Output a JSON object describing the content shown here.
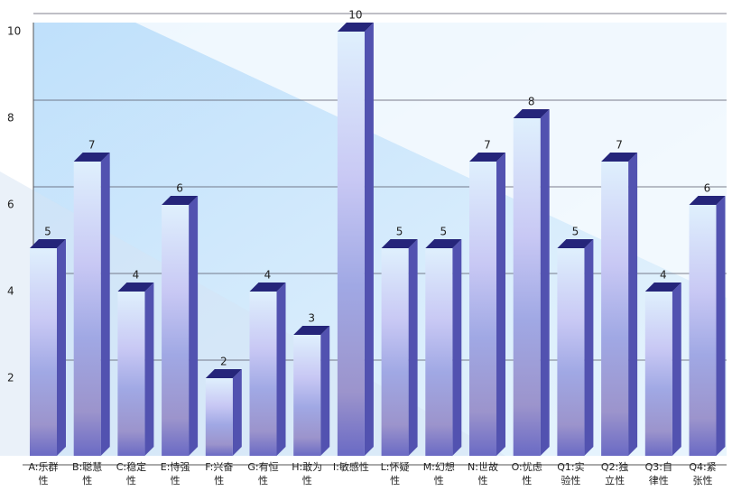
{
  "chart_data": {
    "type": "bar3d",
    "categories": [
      "A:乐群性",
      "B:聪慧性",
      "C:稳定性",
      "E:恃强性",
      "F:兴奋性",
      "G:有恒性",
      "H:敢为性",
      "I:敏感性",
      "L:怀疑性",
      "M:幻想性",
      "N:世故性",
      "O:忧虑性",
      "Q1:实验性",
      "Q2:独立性",
      "Q3:自律性",
      "Q4:紧张性"
    ],
    "values": [
      5,
      7,
      4,
      6,
      2,
      4,
      3,
      10,
      5,
      5,
      7,
      8,
      5,
      7,
      4,
      6
    ],
    "color": "#6a6ac4",
    "ylim": [
      0,
      10
    ],
    "yticks": [
      2,
      4,
      6,
      8,
      10
    ],
    "grid": true
  }
}
